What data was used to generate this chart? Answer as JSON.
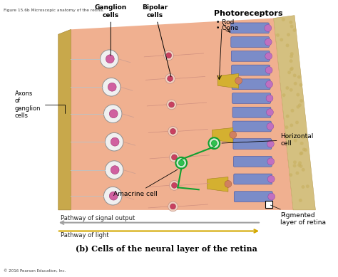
{
  "title_top": "Figure 15.6b Microscopic anatomy of the retina.",
  "title_bottom": "(b) Cells of the neural layer of the retina",
  "copyright": "© 2016 Pearson Education, Inc.",
  "labels": {
    "ganglion_cells": "Ganglion\ncells",
    "axons": "Axons\nof\nganglion\ncells",
    "bipolar_cells": "Bipolar\ncells",
    "photoreceptors": "Photoreceptors",
    "rod": "• Rod",
    "cone": "• Cone",
    "horizontal_cell": "Horizontal\ncell",
    "amacrine_cell": "Amacrine cell",
    "pigmented": "Pigmented\nlayer of retina"
  },
  "signal_output_label": "Pathway of signal output",
  "signal_output_color": "#a0a0a0",
  "light_label": "Pathway of light",
  "light_color": "#d4a800",
  "bg_color": "#ffffff",
  "retina_fill": "#f0b090",
  "axon_layer_color": "#c8a84b",
  "pigment_layer_color": "#d4c080",
  "rod_color": "#7b8cc8",
  "cone_color": "#d4b030",
  "ganglion_body_color": "#e8e8e8",
  "ganglion_nucleus_color": "#d060a0",
  "bipolar_body_color": "#f0d0c0",
  "bipolar_nucleus_color": "#c84060",
  "amacrine_outline_color": "#10a030",
  "horizontal_outline_color": "#10a030"
}
